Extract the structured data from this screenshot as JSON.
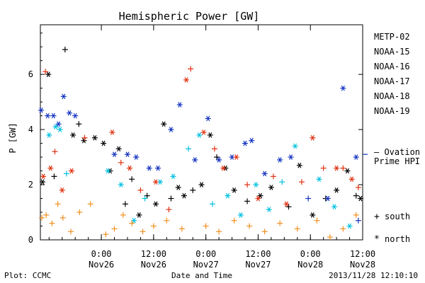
{
  "chart_data": {
    "type": "scatter",
    "title": "Hemispheric Power [GW]",
    "ylabel": "P [GW]",
    "xlabel": "Date and Time",
    "ylim": [
      0,
      7.8
    ],
    "y_ticks": [
      0,
      2,
      4,
      6
    ],
    "x_ticks": [
      {
        "time": "2013-11-26T00:00",
        "line1": "0:00",
        "line2": "Nov26"
      },
      {
        "time": "2013-11-26T12:00",
        "line1": "12:00",
        "line2": "Nov26"
      },
      {
        "time": "2013-11-27T00:00",
        "line1": "0:00",
        "line2": "Nov27"
      },
      {
        "time": "2013-11-27T12:00",
        "line1": "12:00",
        "line2": "Nov27"
      },
      {
        "time": "2013-11-28T00:00",
        "line1": "0:00",
        "line2": "Nov28"
      },
      {
        "time": "2013-11-28T12:00",
        "line1": "12:00",
        "line2": "Nov28"
      }
    ],
    "xlim": [
      "2013-11-25T10:00",
      "2013-11-28T12:00"
    ],
    "legend": {
      "placement": "right",
      "symbols": [
        {
          "symbol": "+",
          "label": "south"
        },
        {
          "symbol": "*",
          "label": "north"
        }
      ]
    },
    "ovation": {
      "label_line1": "— Ovation",
      "label_line2": "Prime HPI",
      "value": 3.1,
      "color": "#1030c0"
    },
    "series": [
      {
        "name": "METP-02",
        "color": "#000000",
        "points": [
          {
            "t": "2013-11-25T10:30",
            "v": 2.1,
            "m": "*"
          },
          {
            "t": "2013-11-25T11:50",
            "v": 6.0,
            "m": "*"
          },
          {
            "t": "2013-11-25T13:10",
            "v": 2.3,
            "m": "+"
          },
          {
            "t": "2013-11-25T15:40",
            "v": 6.9,
            "m": "+"
          },
          {
            "t": "2013-11-25T17:30",
            "v": 3.8,
            "m": "*"
          },
          {
            "t": "2013-11-25T18:50",
            "v": 4.2,
            "m": "+"
          },
          {
            "t": "2013-11-25T20:00",
            "v": 3.6,
            "m": "*"
          },
          {
            "t": "2013-11-25T22:30",
            "v": 3.7,
            "m": "*"
          },
          {
            "t": "2013-11-26T00:30",
            "v": 3.5,
            "m": "*"
          },
          {
            "t": "2013-11-26T02:00",
            "v": 2.5,
            "m": "*"
          },
          {
            "t": "2013-11-26T04:00",
            "v": 3.3,
            "m": "*"
          },
          {
            "t": "2013-11-26T05:30",
            "v": 1.3,
            "m": "+"
          },
          {
            "t": "2013-11-26T07:00",
            "v": 2.2,
            "m": "+"
          },
          {
            "t": "2013-11-26T08:40",
            "v": 0.9,
            "m": "*"
          },
          {
            "t": "2013-11-26T10:30",
            "v": 1.6,
            "m": "+"
          },
          {
            "t": "2013-11-26T12:30",
            "v": 1.3,
            "m": "*"
          },
          {
            "t": "2013-11-26T14:20",
            "v": 4.2,
            "m": "*"
          },
          {
            "t": "2013-11-26T16:00",
            "v": 1.5,
            "m": "+"
          },
          {
            "t": "2013-11-26T17:40",
            "v": 1.9,
            "m": "*"
          },
          {
            "t": "2013-11-26T19:00",
            "v": 1.6,
            "m": "*"
          },
          {
            "t": "2013-11-26T21:00",
            "v": 1.8,
            "m": "+"
          },
          {
            "t": "2013-11-26T23:00",
            "v": 2.0,
            "m": "*"
          },
          {
            "t": "2013-11-27T01:00",
            "v": 3.8,
            "m": "*"
          },
          {
            "t": "2013-11-27T02:30",
            "v": 3.0,
            "m": "+"
          },
          {
            "t": "2013-11-27T04:30",
            "v": 2.6,
            "m": "*"
          },
          {
            "t": "2013-11-27T06:30",
            "v": 1.8,
            "m": "*"
          },
          {
            "t": "2013-11-27T09:30",
            "v": 1.4,
            "m": "+"
          },
          {
            "t": "2013-11-27T12:30",
            "v": 1.6,
            "m": "*"
          },
          {
            "t": "2013-11-27T15:00",
            "v": 1.9,
            "m": "*"
          },
          {
            "t": "2013-11-27T19:00",
            "v": 1.2,
            "m": "+"
          },
          {
            "t": "2013-11-27T21:30",
            "v": 2.7,
            "m": "*"
          },
          {
            "t": "2013-11-28T00:30",
            "v": 0.9,
            "m": "*"
          },
          {
            "t": "2013-11-28T03:30",
            "v": 1.5,
            "m": "+"
          },
          {
            "t": "2013-11-28T06:00",
            "v": 1.8,
            "m": "*"
          },
          {
            "t": "2013-11-28T08:30",
            "v": 2.5,
            "m": "*"
          },
          {
            "t": "2013-11-28T10:30",
            "v": 1.6,
            "m": "+"
          },
          {
            "t": "2013-11-28T11:30",
            "v": 1.5,
            "m": "*"
          }
        ]
      },
      {
        "name": "NOAA-15",
        "color": "#1030c0",
        "points": [
          {
            "t": "2013-11-25T10:10",
            "v": 4.7,
            "m": "*"
          },
          {
            "t": "2013-11-25T11:40",
            "v": 4.5,
            "m": "*"
          },
          {
            "t": "2013-11-25T13:00",
            "v": 4.5,
            "m": "*"
          },
          {
            "t": "2013-11-25T14:10",
            "v": 4.2,
            "m": "*"
          },
          {
            "t": "2013-11-25T15:20",
            "v": 5.2,
            "m": "*"
          },
          {
            "t": "2013-11-25T16:40",
            "v": 4.6,
            "m": "*"
          },
          {
            "t": "2013-11-25T18:00",
            "v": 4.5,
            "m": "*"
          },
          {
            "t": "2013-11-26T03:00",
            "v": 3.1,
            "m": "*"
          },
          {
            "t": "2013-11-26T06:00",
            "v": 3.1,
            "m": "*"
          },
          {
            "t": "2013-11-26T08:00",
            "v": 3.0,
            "m": "*"
          },
          {
            "t": "2013-11-26T11:00",
            "v": 2.6,
            "m": "*"
          },
          {
            "t": "2013-11-26T13:00",
            "v": 2.6,
            "m": "*"
          },
          {
            "t": "2013-11-26T16:00",
            "v": 4.0,
            "m": "*"
          },
          {
            "t": "2013-11-26T18:00",
            "v": 4.9,
            "m": "*"
          },
          {
            "t": "2013-11-26T21:30",
            "v": 2.9,
            "m": "*"
          },
          {
            "t": "2013-11-27T00:30",
            "v": 4.4,
            "m": "*"
          },
          {
            "t": "2013-11-27T03:00",
            "v": 2.9,
            "m": "*"
          },
          {
            "t": "2013-11-27T06:00",
            "v": 3.0,
            "m": "*"
          },
          {
            "t": "2013-11-27T09:00",
            "v": 3.5,
            "m": "*"
          },
          {
            "t": "2013-11-27T10:30",
            "v": 3.6,
            "m": "*"
          },
          {
            "t": "2013-11-27T13:30",
            "v": 2.4,
            "m": "*"
          },
          {
            "t": "2013-11-27T17:00",
            "v": 2.9,
            "m": "*"
          },
          {
            "t": "2013-11-27T19:30",
            "v": 3.0,
            "m": "*"
          },
          {
            "t": "2013-11-27T23:30",
            "v": 1.5,
            "m": "+"
          },
          {
            "t": "2013-11-28T04:00",
            "v": 1.5,
            "m": "*"
          },
          {
            "t": "2013-11-28T07:30",
            "v": 5.5,
            "m": "*"
          },
          {
            "t": "2013-11-28T10:30",
            "v": 3.0,
            "m": "*"
          },
          {
            "t": "2013-11-28T11:00",
            "v": 0.7,
            "m": "+"
          }
        ]
      },
      {
        "name": "NOAA-16",
        "color": "#00c0e0",
        "points": [
          {
            "t": "2013-11-25T12:00",
            "v": 3.8,
            "m": "*"
          },
          {
            "t": "2013-11-25T13:30",
            "v": 4.1,
            "m": "*"
          },
          {
            "t": "2013-11-25T14:30",
            "v": 4.0,
            "m": "*"
          },
          {
            "t": "2013-11-25T16:00",
            "v": 2.4,
            "m": "+"
          },
          {
            "t": "2013-11-26T01:30",
            "v": 2.5,
            "m": "*"
          },
          {
            "t": "2013-11-26T04:30",
            "v": 2.0,
            "m": "*"
          },
          {
            "t": "2013-11-26T07:30",
            "v": 0.7,
            "m": "*"
          },
          {
            "t": "2013-11-26T10:00",
            "v": 1.5,
            "m": "+"
          },
          {
            "t": "2013-11-26T13:30",
            "v": 2.1,
            "m": "*"
          },
          {
            "t": "2013-11-26T16:30",
            "v": 2.3,
            "m": "*"
          },
          {
            "t": "2013-11-26T20:00",
            "v": 3.3,
            "m": "+"
          },
          {
            "t": "2013-11-26T22:30",
            "v": 3.8,
            "m": "*"
          },
          {
            "t": "2013-11-27T01:30",
            "v": 1.3,
            "m": "+"
          },
          {
            "t": "2013-11-27T05:00",
            "v": 1.6,
            "m": "*"
          },
          {
            "t": "2013-11-27T08:00",
            "v": 0.9,
            "m": "*"
          },
          {
            "t": "2013-11-27T11:30",
            "v": 2.0,
            "m": "*"
          },
          {
            "t": "2013-11-27T14:30",
            "v": 1.1,
            "m": "*"
          },
          {
            "t": "2013-11-27T17:30",
            "v": 2.1,
            "m": "+"
          },
          {
            "t": "2013-11-27T20:30",
            "v": 3.4,
            "m": "*"
          },
          {
            "t": "2013-11-28T02:00",
            "v": 2.2,
            "m": "*"
          },
          {
            "t": "2013-11-28T05:30",
            "v": 1.2,
            "m": "*"
          },
          {
            "t": "2013-11-28T09:00",
            "v": 0.5,
            "m": "*"
          }
        ]
      },
      {
        "name": "NOAA-17",
        "color": "#20e080",
        "points": []
      },
      {
        "name": "NOAA-18",
        "color": "#f09020",
        "points": [
          {
            "t": "2013-11-25T10:20",
            "v": 0.8,
            "m": "+"
          },
          {
            "t": "2013-11-25T11:20",
            "v": 0.9,
            "m": "+"
          },
          {
            "t": "2013-11-25T12:40",
            "v": 0.6,
            "m": "+"
          },
          {
            "t": "2013-11-25T14:00",
            "v": 1.3,
            "m": "+"
          },
          {
            "t": "2013-11-25T15:10",
            "v": 0.8,
            "m": "+"
          },
          {
            "t": "2013-11-25T17:00",
            "v": 0.3,
            "m": "+"
          },
          {
            "t": "2013-11-25T19:00",
            "v": 1.0,
            "m": "+"
          },
          {
            "t": "2013-11-25T21:30",
            "v": 1.3,
            "m": "+"
          },
          {
            "t": "2013-11-26T01:00",
            "v": 0.2,
            "m": "+"
          },
          {
            "t": "2013-11-26T03:00",
            "v": 0.4,
            "m": "+"
          },
          {
            "t": "2013-11-26T05:00",
            "v": 0.9,
            "m": "+"
          },
          {
            "t": "2013-11-26T07:00",
            "v": 0.6,
            "m": "+"
          },
          {
            "t": "2013-11-26T09:30",
            "v": 0.3,
            "m": "+"
          },
          {
            "t": "2013-11-26T12:00",
            "v": 0.5,
            "m": "+"
          },
          {
            "t": "2013-11-26T15:00",
            "v": 0.7,
            "m": "+"
          },
          {
            "t": "2013-11-26T18:30",
            "v": 0.4,
            "m": "+"
          },
          {
            "t": "2013-11-27T00:00",
            "v": 0.5,
            "m": "+"
          },
          {
            "t": "2013-11-27T03:00",
            "v": 0.3,
            "m": "+"
          },
          {
            "t": "2013-11-27T06:30",
            "v": 0.7,
            "m": "+"
          },
          {
            "t": "2013-11-27T10:00",
            "v": 0.5,
            "m": "+"
          },
          {
            "t": "2013-11-27T13:30",
            "v": 0.3,
            "m": "+"
          },
          {
            "t": "2013-11-27T17:00",
            "v": 0.6,
            "m": "+"
          },
          {
            "t": "2013-11-27T21:00",
            "v": 0.4,
            "m": "+"
          },
          {
            "t": "2013-11-28T01:30",
            "v": 0.7,
            "m": "+"
          },
          {
            "t": "2013-11-28T04:30",
            "v": 0.1,
            "m": "+"
          },
          {
            "t": "2013-11-28T07:30",
            "v": 0.4,
            "m": "+"
          },
          {
            "t": "2013-11-28T10:30",
            "v": 0.9,
            "m": "+"
          }
        ]
      },
      {
        "name": "NOAA-19",
        "color": "#e03010",
        "points": [
          {
            "t": "2013-11-25T10:40",
            "v": 2.3,
            "m": "*"
          },
          {
            "t": "2013-11-25T11:10",
            "v": 6.1,
            "m": "+"
          },
          {
            "t": "2013-11-25T12:20",
            "v": 2.6,
            "m": "*"
          },
          {
            "t": "2013-11-25T13:20",
            "v": 3.2,
            "m": "+"
          },
          {
            "t": "2013-11-25T15:00",
            "v": 1.8,
            "m": "*"
          },
          {
            "t": "2013-11-25T17:10",
            "v": 2.5,
            "m": "*"
          },
          {
            "t": "2013-11-25T20:10",
            "v": 3.7,
            "m": "+"
          },
          {
            "t": "2013-11-26T02:30",
            "v": 3.9,
            "m": "*"
          },
          {
            "t": "2013-11-26T04:30",
            "v": 2.8,
            "m": "+"
          },
          {
            "t": "2013-11-26T06:30",
            "v": 2.6,
            "m": "*"
          },
          {
            "t": "2013-11-26T09:00",
            "v": 1.8,
            "m": "+"
          },
          {
            "t": "2013-11-26T12:30",
            "v": 2.1,
            "m": "*"
          },
          {
            "t": "2013-11-26T15:30",
            "v": 1.1,
            "m": "+"
          },
          {
            "t": "2013-11-26T19:30",
            "v": 5.8,
            "m": "*"
          },
          {
            "t": "2013-11-26T20:30",
            "v": 6.2,
            "m": "+"
          },
          {
            "t": "2013-11-26T23:30",
            "v": 3.9,
            "m": "*"
          },
          {
            "t": "2013-11-27T02:00",
            "v": 3.3,
            "m": "+"
          },
          {
            "t": "2013-11-27T04:00",
            "v": 2.6,
            "m": "*"
          },
          {
            "t": "2013-11-27T07:00",
            "v": 3.0,
            "m": "*"
          },
          {
            "t": "2013-11-27T09:30",
            "v": 2.0,
            "m": "+"
          },
          {
            "t": "2013-11-27T12:00",
            "v": 1.5,
            "m": "*"
          },
          {
            "t": "2013-11-27T15:30",
            "v": 2.3,
            "m": "+"
          },
          {
            "t": "2013-11-27T18:30",
            "v": 1.3,
            "m": "*"
          },
          {
            "t": "2013-11-27T22:00",
            "v": 2.1,
            "m": "+"
          },
          {
            "t": "2013-11-28T00:30",
            "v": 3.7,
            "m": "*"
          },
          {
            "t": "2013-11-28T03:00",
            "v": 2.6,
            "m": "+"
          },
          {
            "t": "2013-11-28T06:00",
            "v": 2.6,
            "m": "*"
          },
          {
            "t": "2013-11-28T07:30",
            "v": 2.6,
            "m": "+"
          },
          {
            "t": "2013-11-28T09:30",
            "v": 2.2,
            "m": "*"
          },
          {
            "t": "2013-11-28T11:00",
            "v": 1.9,
            "m": "+"
          }
        ]
      }
    ]
  },
  "footer": {
    "left": "Plot: CCMC",
    "center": "Date and Time",
    "right": "2013/11/28 12:10:10"
  }
}
